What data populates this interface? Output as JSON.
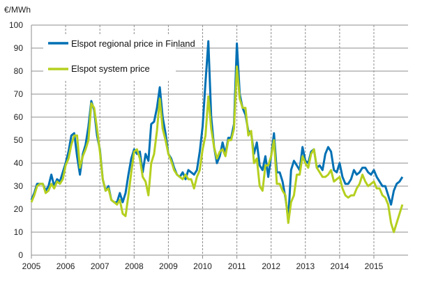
{
  "chart_data": {
    "type": "line",
    "title": "",
    "ylabel": "€/MWh",
    "xlabel": "",
    "ylim": [
      0,
      100
    ],
    "yticks": [
      0,
      10,
      20,
      30,
      40,
      50,
      60,
      70,
      80,
      90,
      100
    ],
    "xticks": [
      "2005",
      "2006",
      "2007",
      "2008",
      "2009",
      "2010",
      "2011",
      "2012",
      "2013",
      "2014",
      "2015"
    ],
    "x_start": "2005-01",
    "x_frequency": "monthly",
    "grid": "horizontal solid, vertical dashed at years",
    "legend_placement": "top-left",
    "series": [
      {
        "name": "Elspot regional price in Finland",
        "color": "#0070b4",
        "values": [
          24,
          27,
          31,
          31,
          31,
          28,
          30,
          35,
          30,
          33,
          32,
          36,
          40,
          45,
          52,
          53,
          43,
          35,
          44,
          48,
          56,
          67,
          63,
          52,
          46,
          33,
          28,
          30,
          24,
          23,
          23,
          27,
          23,
          27,
          35,
          42,
          46,
          44,
          45,
          36,
          44,
          41,
          57,
          58,
          64,
          73,
          60,
          53,
          44,
          42,
          38,
          35,
          34,
          36,
          33,
          37,
          36,
          35,
          37,
          45,
          56,
          75,
          93,
          60,
          47,
          40,
          43,
          49,
          44,
          51,
          51,
          57,
          92,
          70,
          64,
          61,
          54,
          53,
          44,
          49,
          39,
          37,
          43,
          34,
          43,
          53,
          36,
          36,
          32,
          25,
          16,
          37,
          41,
          39,
          37,
          47,
          41,
          40,
          45,
          46,
          38,
          39,
          37,
          44,
          47,
          45,
          37,
          36,
          40,
          34,
          31,
          31,
          33,
          37,
          35,
          36,
          38,
          38,
          36,
          35,
          37,
          34,
          32,
          30,
          30,
          26,
          22,
          28,
          31,
          32,
          34
        ]
      },
      {
        "name": "Elspot system price",
        "color": "#b5cf1f",
        "values": [
          23,
          26,
          30,
          31,
          31,
          27,
          28,
          31,
          29,
          32,
          31,
          33,
          39,
          42,
          48,
          52,
          52,
          38,
          43,
          46,
          50,
          66,
          64,
          55,
          45,
          33,
          28,
          29,
          24,
          23,
          22,
          24,
          18,
          17,
          26,
          36,
          45,
          46,
          42,
          34,
          32,
          26,
          40,
          44,
          54,
          68,
          55,
          50,
          44,
          41,
          37,
          35,
          34,
          33,
          35,
          33,
          33,
          29,
          34,
          37,
          46,
          52,
          69,
          55,
          47,
          42,
          45,
          46,
          43,
          50,
          50,
          55,
          82,
          68,
          64,
          64,
          52,
          54,
          40,
          42,
          30,
          28,
          39,
          39,
          43,
          50,
          31,
          31,
          28,
          26,
          14,
          23,
          26,
          35,
          35,
          43,
          40,
          38,
          44,
          46,
          38,
          36,
          34,
          34,
          35,
          37,
          32,
          33,
          34,
          29,
          26,
          25,
          26,
          26,
          29,
          31,
          35,
          32,
          30,
          31,
          32,
          29,
          29,
          26,
          25,
          22,
          14,
          10,
          14,
          18,
          22
        ]
      }
    ]
  }
}
